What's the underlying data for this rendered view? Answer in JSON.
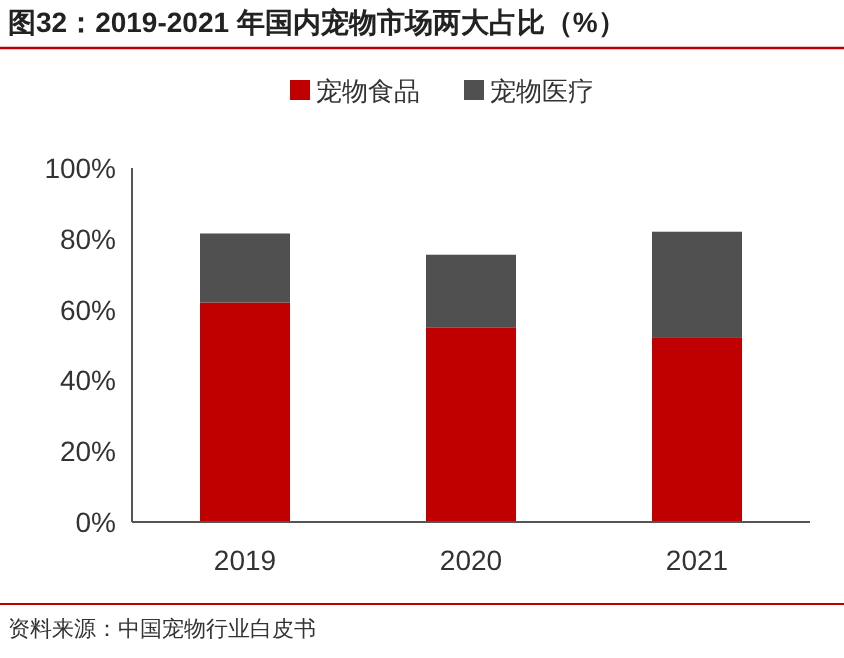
{
  "chart_data": {
    "type": "bar",
    "title": "图32：2019-2021 年国内宠物市场两大占比（%）",
    "categories": [
      "2019",
      "2020",
      "2021"
    ],
    "stacked": true,
    "legend": "top",
    "series": [
      {
        "name": "宠物食品",
        "color": "#c00000",
        "values": [
          62,
          55,
          52
        ]
      },
      {
        "name": "宠物医疗",
        "color": "#505050",
        "values": [
          19.5,
          20.5,
          30
        ]
      }
    ],
    "ylim": [
      0,
      100
    ],
    "yticks": [
      {
        "value": 0,
        "label": "0%"
      },
      {
        "value": 20,
        "label": "20%"
      },
      {
        "value": 40,
        "label": "40%"
      },
      {
        "value": 60,
        "label": "60%"
      },
      {
        "value": 80,
        "label": "80%"
      },
      {
        "value": 100,
        "label": "100%"
      }
    ],
    "annotations": [
      "资料来源：中国宠物行业白皮书"
    ]
  }
}
